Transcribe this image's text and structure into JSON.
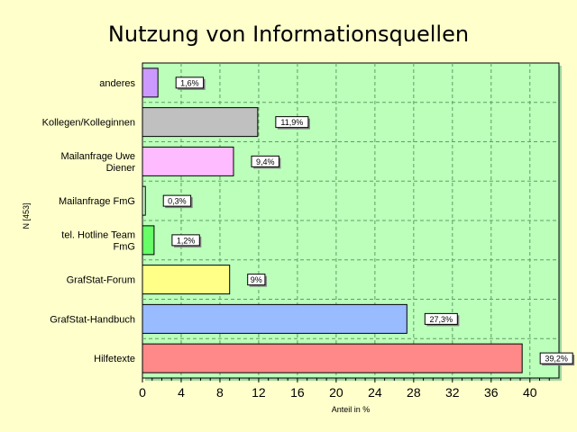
{
  "chart_data": {
    "type": "bar",
    "orientation": "horizontal",
    "title": "Nutzung von Informationsquellen",
    "xlabel": "Anteil in %",
    "ylabel": "N [453]",
    "xlim": [
      0,
      43
    ],
    "xticks": [
      0,
      4,
      8,
      12,
      16,
      20,
      24,
      28,
      32,
      36,
      40
    ],
    "grid": true,
    "categories": [
      [
        "anderes"
      ],
      [
        "Kollegen/Kolleginnen"
      ],
      [
        "Mailanfrage Uwe",
        "Diener"
      ],
      [
        "Mailanfrage FmG"
      ],
      [
        "tel. Hotline Team",
        "FmG"
      ],
      [
        "GrafStat-Forum"
      ],
      [
        "GrafStat-Handbuch"
      ],
      [
        "Hilfetexte"
      ]
    ],
    "values": [
      1.6,
      11.9,
      9.4,
      0.3,
      1.2,
      9,
      27.3,
      39.2
    ],
    "value_labels": [
      "1,6%",
      "11,9%",
      "9,4%",
      "0,3%",
      "1,2%",
      "9%",
      "27,3%",
      "39,2%"
    ],
    "colors": [
      "#cc99ff",
      "#c0c0c0",
      "#ffbbff",
      "#ccffcc",
      "#66ff66",
      "#ffff88",
      "#99bbff",
      "#ff8888"
    ],
    "plot_background": "#bbffbb",
    "page_background": "#ffffcc"
  }
}
